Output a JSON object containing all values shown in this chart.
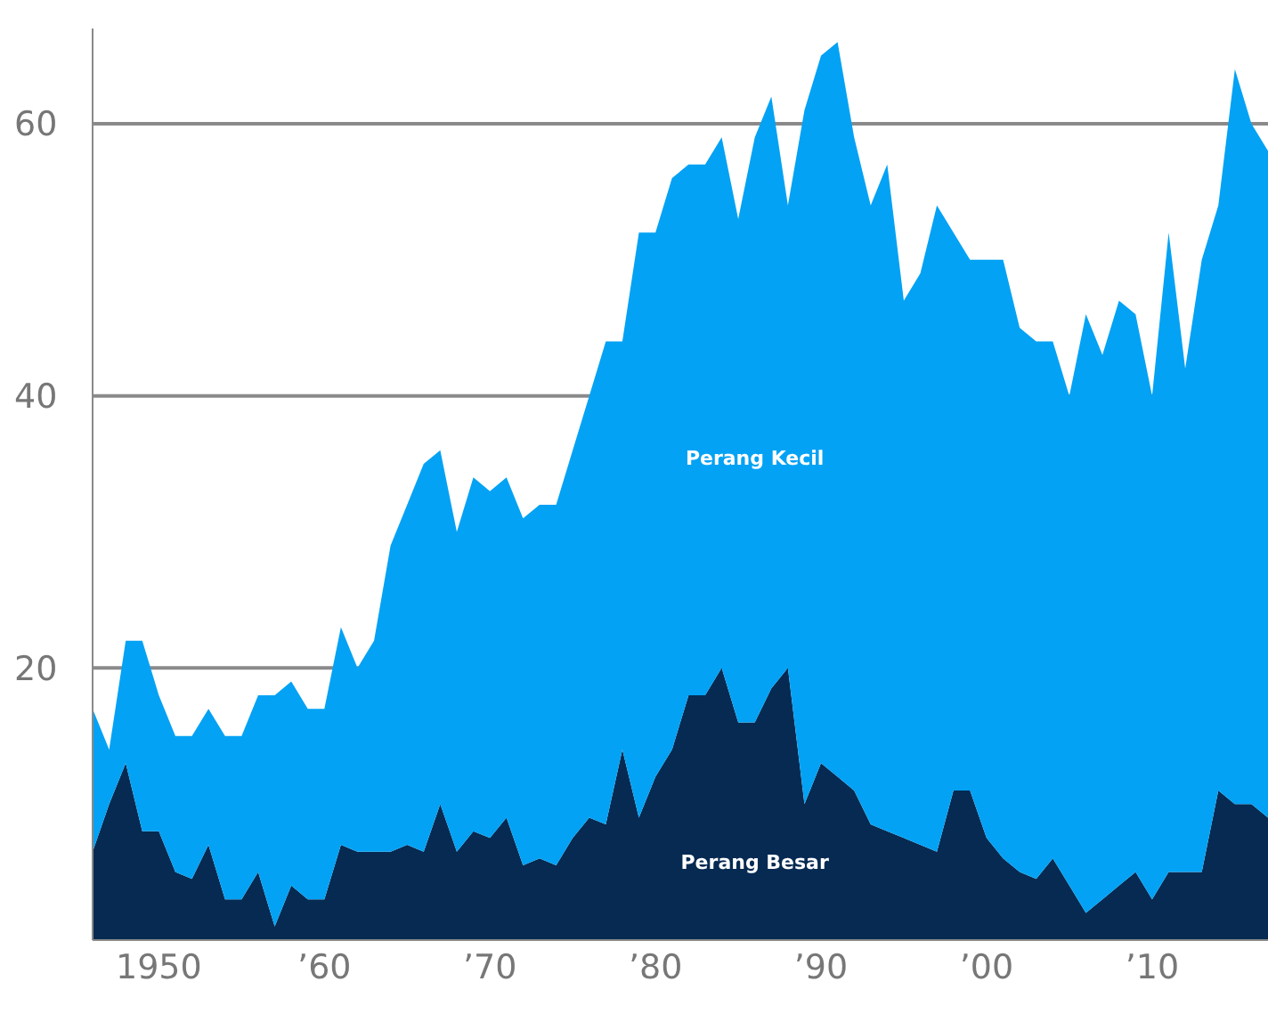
{
  "chart_data": {
    "type": "area",
    "stacked": true,
    "grid": "y",
    "x": [
      1946,
      1947,
      1948,
      1949,
      1950,
      1951,
      1952,
      1953,
      1954,
      1955,
      1956,
      1957,
      1958,
      1959,
      1960,
      1961,
      1962,
      1963,
      1964,
      1965,
      1966,
      1967,
      1968,
      1969,
      1970,
      1971,
      1972,
      1973,
      1974,
      1975,
      1976,
      1977,
      1978,
      1979,
      1980,
      1981,
      1982,
      1983,
      1984,
      1985,
      1986,
      1987,
      1988,
      1989,
      1990,
      1991,
      1992,
      1993,
      1994,
      1995,
      1996,
      1997,
      1998,
      1999,
      2000,
      2001,
      2002,
      2003,
      2004,
      2005,
      2006,
      2007,
      2008,
      2009,
      2010,
      2011,
      2012,
      2013,
      2014,
      2015,
      2016,
      2017
    ],
    "series": [
      {
        "name": "Perang Besar",
        "color": "#062a52",
        "values": [
          6.5,
          10,
          13,
          8,
          8,
          5,
          4.5,
          7,
          3,
          3,
          5,
          1,
          4,
          3,
          3,
          7,
          6.5,
          6.5,
          6.5,
          7,
          6.5,
          10,
          6.5,
          8,
          7.5,
          9,
          5.5,
          6,
          5.5,
          7.5,
          9,
          8.5,
          14,
          9,
          12,
          14,
          18,
          18,
          20,
          16,
          16,
          18.5,
          20,
          10,
          13,
          12,
          11,
          8.5,
          8,
          7.5,
          7,
          6.5,
          11,
          11,
          7.5,
          6,
          5,
          4.5,
          6,
          4,
          2,
          3,
          4,
          5,
          3,
          5,
          5,
          5,
          11,
          10,
          10,
          9
        ]
      },
      {
        "name": "Perang Kecil",
        "color": "#03a2f4",
        "values": [
          10.5,
          4,
          9,
          14,
          10,
          10,
          10.5,
          10,
          12,
          12,
          13,
          17,
          15,
          14,
          14,
          16,
          13.5,
          15.5,
          22.5,
          25,
          28.5,
          26,
          23.5,
          26,
          25.5,
          25,
          25.5,
          26,
          26.5,
          28.5,
          31,
          35.5,
          30,
          43,
          40,
          42,
          39,
          39,
          39,
          37,
          43,
          43.5,
          34,
          51,
          52,
          54,
          48,
          45.5,
          49,
          39.5,
          42,
          47.5,
          41,
          39,
          42.5,
          44,
          40,
          39.5,
          38,
          36,
          44,
          40,
          43,
          41,
          37,
          47,
          37,
          45,
          43,
          54,
          50,
          49
        ]
      }
    ],
    "xlim": [
      1946,
      2017
    ],
    "xticks": [
      1950,
      {
        "value": 1960,
        "label": "’60"
      },
      {
        "value": 1970,
        "label": "’70"
      },
      {
        "value": 1980,
        "label": "’80"
      },
      {
        "value": 1990,
        "label": "’90"
      },
      {
        "value": 2000,
        "label": "’00"
      },
      {
        "value": 2010,
        "label": "’10"
      }
    ],
    "ylim": [
      0,
      67
    ],
    "yticks": [
      20,
      40,
      60
    ]
  }
}
